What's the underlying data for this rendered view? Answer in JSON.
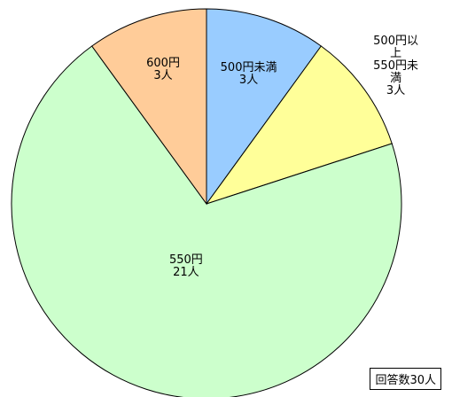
{
  "chart_data": {
    "type": "pie",
    "categories": [
      "500円未満",
      "500円以上\n550円未満",
      "550円",
      "600円"
    ],
    "values": [
      3,
      3,
      21,
      3
    ],
    "value_labels": [
      "3人",
      "3人",
      "21人",
      "3人"
    ],
    "colors": [
      "#99ccff",
      "#ffff99",
      "#ccffcc",
      "#ffcc99"
    ],
    "annotation": "回答数30人"
  }
}
